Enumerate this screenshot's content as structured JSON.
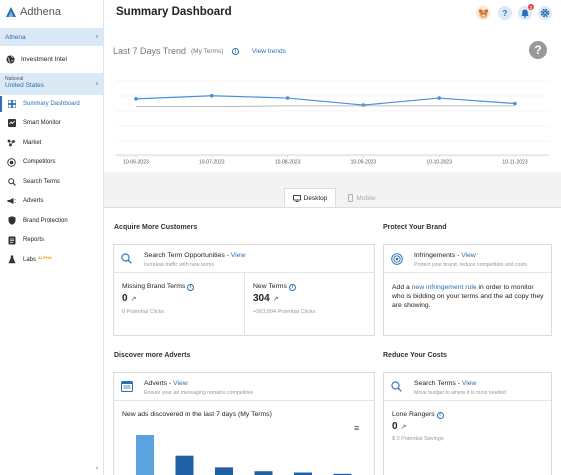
{
  "app": {
    "name": "Adthena"
  },
  "sidebar": {
    "account": "Athena",
    "intel_label": "Investment Intel",
    "country_small": "National",
    "country": "United States",
    "items": [
      {
        "label": "Summary Dashboard",
        "icon": "dashboard-icon",
        "active": true
      },
      {
        "label": "Smart Monitor",
        "icon": "monitor-icon"
      },
      {
        "label": "Market",
        "icon": "market-icon"
      },
      {
        "label": "Competitors",
        "icon": "competitors-icon"
      },
      {
        "label": "Search Terms",
        "icon": "search-icon"
      },
      {
        "label": "Adverts",
        "icon": "megaphone-icon"
      },
      {
        "label": "Brand Protection",
        "icon": "shield-icon"
      },
      {
        "label": "Reports",
        "icon": "reports-icon"
      },
      {
        "label": "Labs",
        "icon": "flask-icon",
        "badge": "ALPHA"
      }
    ]
  },
  "header": {
    "title": "Summary Dashboard",
    "notification_count": "2"
  },
  "trend": {
    "title": "Last 7 Days Trend",
    "subtitle": "(My Terms)",
    "link": "View trends",
    "help": "?",
    "chart_data": {
      "type": "line",
      "x": [
        "10-06-2023",
        "10-07-2023",
        "10-08-2023",
        "10-09-2023",
        "10-10-2023",
        "10-11-2023"
      ],
      "series": [
        {
          "values": [
            72,
            76,
            73,
            64,
            73,
            66
          ],
          "color": "#4a90d9"
        },
        {
          "values": [
            62,
            62,
            63,
            63,
            63,
            63
          ],
          "color": "#aaaaaa"
        }
      ],
      "ylim": [
        0,
        100
      ],
      "grid": true
    }
  },
  "tabs": {
    "desktop": "Desktop",
    "mobile": "Mobile"
  },
  "sections": {
    "acquire": "Acquire More Customers",
    "protect": "Protect Your Brand",
    "discover": "Discover more Adverts",
    "reduce": "Reduce Your Costs"
  },
  "cards": {
    "opportunities": {
      "title": "Search Term Opportunities - ",
      "link": "View",
      "sub": "Increase traffic with new terms"
    },
    "missing": {
      "label": "Missing Brand Terms",
      "value": "0",
      "sub": "0 Potential Clicks"
    },
    "new_terms": {
      "label": "New Terms",
      "value": "304",
      "sub": "+563,894 Potential Clicks"
    },
    "infringements": {
      "title": "Infringements - ",
      "link": "View",
      "sub": "Protect your brand, reduce competition and costs",
      "desc_pre": "Add a ",
      "desc_link": "new infringement rule",
      "desc_post": " in order to monitor who is bidding on your terms and the ad copy they are showing."
    },
    "adverts": {
      "title": "Adverts - ",
      "link": "View",
      "sub": "Ensure your ad messaging remains competitive",
      "chart_title": "New ads discovered in the last 7 days (My Terms)",
      "chart_data": {
        "type": "bar",
        "values": [
          34,
          18,
          9,
          6,
          5,
          4
        ],
        "colors": [
          "#5ba3e0",
          "#1f5fa3",
          "#1f5fa3",
          "#1f5fa3",
          "#1f5fa3",
          "#1f5fa3"
        ]
      }
    },
    "search_terms": {
      "title": "Search Terms - ",
      "link": "View",
      "sub": "Move budget to where it is most needed",
      "metric": "Lone Rangers",
      "value": "0",
      "metric_sub": "$ 0 Potential Savings"
    }
  }
}
